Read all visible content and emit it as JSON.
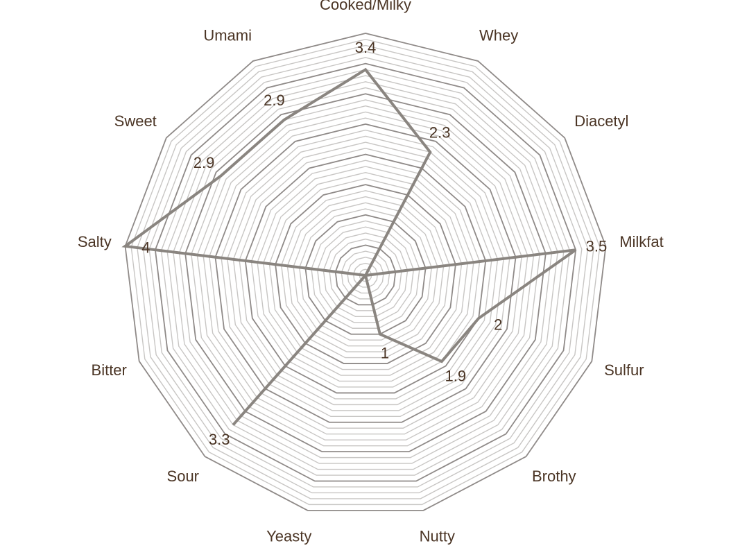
{
  "chart_data": {
    "type": "radar",
    "categories": [
      "Cooked/Milky",
      "Whey",
      "Diacetyl",
      "Milkfat",
      "Sulfur",
      "Brothy",
      "Nutty",
      "Yeasty",
      "Sour",
      "Bitter",
      "Salty",
      "Sweet",
      "Umami"
    ],
    "series": [
      {
        "color": "#8a8580",
        "values": [
          3.4,
          2.3,
          0,
          3.5,
          2,
          1.9,
          1,
          0,
          3.3,
          0,
          4,
          2.9,
          2.9
        ],
        "value_labels": [
          "3.4",
          "2.3",
          null,
          "3.5",
          "2",
          "1.9",
          "1",
          null,
          "3.3",
          null,
          "4",
          "2.9",
          "2.9"
        ]
      }
    ],
    "ylim": [
      0,
      4
    ],
    "yticks": [
      0.1,
      0.2,
      0.3,
      0.4,
      0.5,
      0.6,
      0.7,
      0.8,
      0.9,
      1,
      1.1,
      1.2,
      1.3,
      1.4,
      1.5,
      1.6,
      1.7,
      1.8,
      1.9,
      2,
      2.1,
      2.2,
      2.3,
      2.4,
      2.5,
      2.6,
      2.7,
      2.8,
      2.9,
      3,
      3.1,
      3.2,
      3.3,
      3.4,
      3.5,
      3.6,
      3.7,
      3.8,
      3.9,
      4
    ],
    "grid": true
  }
}
